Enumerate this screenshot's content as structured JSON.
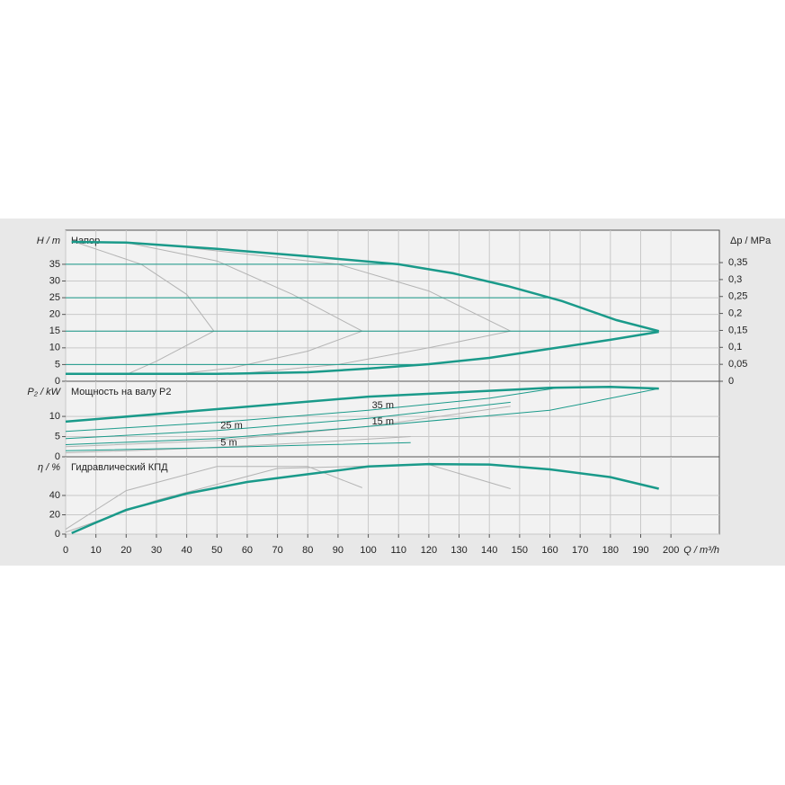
{
  "chart_data": [
    {
      "type": "line",
      "title": "Напор",
      "ylabel": "H / m",
      "y2label": "Δp / MPa",
      "xlim": [
        0,
        216
      ],
      "ylim": [
        0,
        45.2
      ],
      "yticks": [
        0,
        5,
        10,
        15,
        20,
        25,
        30,
        35
      ],
      "y2lim": [
        0,
        0.4456
      ],
      "y2ticks": [
        0,
        {
          "value": 0.05,
          "label": "0,05"
        },
        {
          "value": 0.1,
          "label": "0,1"
        },
        {
          "value": 0.15,
          "label": "0,15"
        },
        {
          "value": 0.2,
          "label": "0,2"
        },
        {
          "value": 0.25,
          "label": "0,25"
        },
        {
          "value": 0.3,
          "label": "0,3"
        },
        {
          "value": 0.35,
          "label": "0,35"
        }
      ],
      "grid": true,
      "series": [
        {
          "color": "#b4b4b4",
          "linewidth": 1,
          "x": [
            2,
            25,
            40,
            49,
            30,
            20
          ],
          "values": [
            42,
            35,
            26,
            15,
            6,
            2
          ]
        },
        {
          "color": "#b4b4b4",
          "linewidth": 1,
          "x": [
            20,
            50,
            75,
            98,
            80,
            55,
            40
          ],
          "values": [
            41.5,
            36,
            26,
            15,
            9,
            4,
            2.5
          ]
        },
        {
          "color": "#b4b4b4",
          "linewidth": 1,
          "x": [
            40,
            90,
            120,
            147,
            120,
            90,
            60
          ],
          "values": [
            40,
            35,
            27,
            15,
            10,
            5,
            2.5
          ]
        },
        {
          "color": "#1a9a8a",
          "linewidth": 1,
          "x": [
            0,
            110
          ],
          "values": [
            35,
            35
          ]
        },
        {
          "color": "#1a9a8a",
          "linewidth": 1,
          "x": [
            0,
            160
          ],
          "values": [
            25,
            25
          ]
        },
        {
          "color": "#1a9a8a",
          "linewidth": 1,
          "x": [
            0,
            196
          ],
          "values": [
            15,
            15
          ]
        },
        {
          "color": "#1a9a8a",
          "linewidth": 1,
          "x": [
            0,
            120
          ],
          "values": [
            5,
            5
          ]
        },
        {
          "color": "#1a9a8a",
          "linewidth": 2.5,
          "x": [
            2,
            20,
            50,
            80,
            110,
            128,
            146,
            164,
            182,
            196
          ],
          "values": [
            41.7,
            41.5,
            39.6,
            37.4,
            35,
            32.3,
            28.5,
            24,
            18.3,
            15
          ]
        },
        {
          "color": "#1a9a8a",
          "linewidth": 2.5,
          "x": [
            0,
            50,
            80,
            100,
            120,
            140,
            160,
            180,
            196
          ],
          "values": [
            2.2,
            2.2,
            2.7,
            3.8,
            5.1,
            7,
            9.7,
            12.4,
            14.8
          ]
        }
      ]
    },
    {
      "type": "line",
      "title": "Мощность на валу P2",
      "ylabel": "P₂ / kW",
      "xlim": [
        0,
        216
      ],
      "ylim": [
        0,
        18.7
      ],
      "yticks": [
        0,
        5,
        10
      ],
      "grid": true,
      "series": [
        {
          "color": "#b4b4b4",
          "linewidth": 1,
          "x": [
            0,
            50,
            100,
            147
          ],
          "values": [
            2.5,
            4,
            7.5,
            12.5
          ]
        },
        {
          "color": "#b4b4b4",
          "linewidth": 1,
          "x": [
            0,
            40,
            80,
            114
          ],
          "values": [
            1,
            2,
            3.5,
            5
          ]
        },
        {
          "name": "35 m",
          "color": "#1a9a8a",
          "linewidth": 1,
          "x": [
            0,
            50,
            100,
            140,
            162
          ],
          "values": [
            6.3,
            8.5,
            11.5,
            14.5,
            17
          ]
        },
        {
          "name": "25 m",
          "color": "#1a9a8a",
          "linewidth": 1,
          "x": [
            0,
            50,
            100,
            147
          ],
          "values": [
            4.5,
            6.5,
            9.5,
            13.5
          ]
        },
        {
          "name": "15 m",
          "color": "#1a9a8a",
          "linewidth": 1,
          "x": [
            0,
            50,
            100,
            160,
            196
          ],
          "values": [
            3,
            4.5,
            7.5,
            11.5,
            16.9
          ]
        },
        {
          "name": "5 m",
          "color": "#1a9a8a",
          "linewidth": 1,
          "x": [
            0,
            50,
            80,
            114
          ],
          "values": [
            1.5,
            2.3,
            2.9,
            3.5
          ]
        },
        {
          "color": "#1a9a8a",
          "linewidth": 2.5,
          "x": [
            0,
            50,
            100,
            150,
            160,
            180,
            196
          ],
          "values": [
            8.7,
            11.8,
            14.9,
            16.7,
            17.1,
            17.3,
            16.9
          ]
        }
      ]
    },
    {
      "type": "line",
      "title": "Гидравлический КПД",
      "ylabel": "η / %",
      "xlabel": "Q / m³/h",
      "xlim": [
        0,
        216
      ],
      "ylim": [
        0,
        80
      ],
      "yticks": [
        0,
        20,
        40
      ],
      "xticks": [
        0,
        10,
        20,
        30,
        40,
        50,
        60,
        70,
        80,
        90,
        100,
        110,
        120,
        130,
        140,
        150,
        160,
        170,
        180,
        190,
        200
      ],
      "grid": true,
      "series": [
        {
          "color": "#b4b4b4",
          "linewidth": 1,
          "x": [
            0,
            20,
            50,
            80,
            98
          ],
          "values": [
            5,
            45,
            70,
            70,
            48
          ]
        },
        {
          "color": "#b4b4b4",
          "linewidth": 1,
          "x": [
            0,
            30,
            70,
            120,
            147
          ],
          "values": [
            2,
            35,
            68,
            72,
            47
          ]
        },
        {
          "color": "#1a9a8a",
          "linewidth": 2.5,
          "x": [
            2,
            10,
            20,
            40,
            60,
            80,
            100,
            120,
            140,
            160,
            180,
            196
          ],
          "values": [
            1,
            12,
            25,
            42,
            54,
            62,
            70,
            72.5,
            72,
            67,
            59,
            47
          ]
        }
      ]
    }
  ]
}
